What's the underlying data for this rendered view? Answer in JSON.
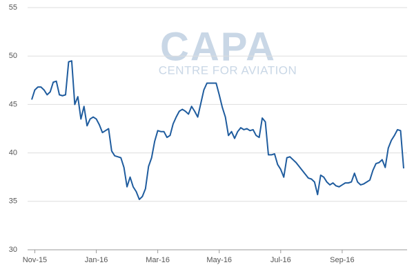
{
  "chart_data": {
    "type": "line",
    "watermark_title": "CAPA",
    "watermark_subtitle": "CENTRE FOR AVIATION",
    "categories": [
      null,
      "Nov-15",
      null,
      null,
      null,
      null,
      null,
      null,
      null,
      null,
      null,
      null,
      null,
      null,
      null,
      null,
      null,
      null,
      null,
      null,
      null,
      "Jan-16",
      null,
      null,
      null,
      null,
      null,
      null,
      null,
      null,
      null,
      null,
      null,
      null,
      null,
      null,
      null,
      null,
      null,
      null,
      null,
      "Mar-16",
      null,
      null,
      null,
      null,
      null,
      null,
      null,
      null,
      null,
      null,
      null,
      null,
      null,
      null,
      null,
      null,
      null,
      null,
      null,
      "May-16",
      null,
      null,
      null,
      null,
      null,
      null,
      null,
      null,
      null,
      null,
      null,
      null,
      null,
      null,
      null,
      null,
      null,
      null,
      null,
      "Jul-16",
      null,
      null,
      null,
      null,
      null,
      null,
      null,
      null,
      null,
      null,
      null,
      null,
      null,
      null,
      null,
      null,
      null,
      null,
      null,
      "Sep-16",
      null,
      null,
      null,
      null,
      null,
      null,
      null,
      null,
      null,
      null,
      null,
      null,
      null,
      null,
      null,
      null,
      null,
      null,
      null,
      null
    ],
    "series": [
      {
        "name": null,
        "color": "#1f5c9e",
        "values": [
          45.5,
          46.5,
          46.8,
          46.8,
          46.5,
          46.0,
          46.3,
          47.3,
          47.4,
          46.0,
          45.9,
          46.0,
          49.4,
          49.5,
          45.0,
          45.8,
          43.5,
          44.8,
          42.8,
          43.5,
          43.7,
          43.5,
          42.9,
          42.1,
          42.3,
          42.5,
          40.2,
          39.7,
          39.6,
          39.5,
          38.5,
          36.5,
          37.5,
          36.5,
          36.0,
          35.2,
          35.5,
          36.3,
          38.6,
          39.5,
          41.2,
          42.3,
          42.2,
          42.2,
          41.6,
          41.8,
          43.0,
          43.7,
          44.3,
          44.5,
          44.3,
          44.0,
          44.8,
          44.3,
          43.7,
          45.1,
          46.5,
          47.2,
          47.2,
          47.2,
          47.2,
          46.0,
          44.7,
          43.7,
          41.8,
          42.2,
          41.5,
          42.2,
          42.6,
          42.4,
          42.5,
          42.3,
          42.4,
          41.8,
          41.6,
          43.6,
          43.2,
          39.8,
          39.8,
          39.9,
          38.8,
          38.3,
          37.5,
          39.5,
          39.6,
          39.3,
          39.0,
          38.6,
          38.2,
          37.8,
          37.4,
          37.3,
          37.0,
          35.7,
          37.7,
          37.5,
          37.0,
          36.7,
          36.9,
          36.6,
          36.5,
          36.7,
          36.9,
          36.9,
          37.0,
          37.9,
          37.0,
          36.7,
          36.8,
          37.0,
          37.2,
          38.2,
          38.9,
          39.0,
          39.3,
          38.5,
          40.5,
          41.3,
          41.8,
          42.4,
          42.3,
          38.4
        ]
      }
    ],
    "ylim": [
      30,
      55
    ],
    "yticks": [
      30,
      35,
      40,
      45,
      50,
      55
    ],
    "grid": true
  }
}
